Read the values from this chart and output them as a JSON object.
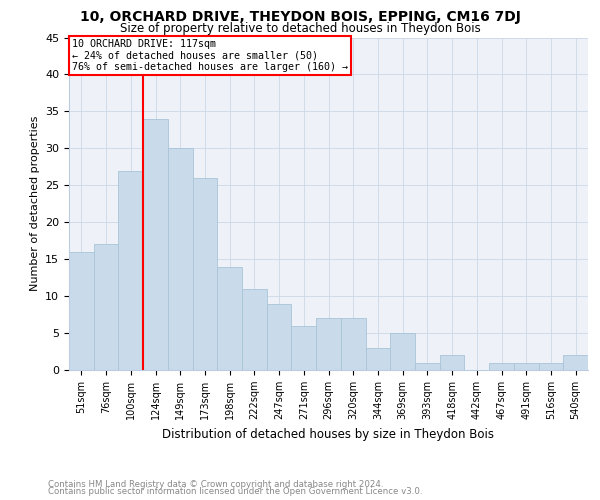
{
  "title1": "10, ORCHARD DRIVE, THEYDON BOIS, EPPING, CM16 7DJ",
  "title2": "Size of property relative to detached houses in Theydon Bois",
  "xlabel": "Distribution of detached houses by size in Theydon Bois",
  "ylabel": "Number of detached properties",
  "categories": [
    "51sqm",
    "76sqm",
    "100sqm",
    "124sqm",
    "149sqm",
    "173sqm",
    "198sqm",
    "222sqm",
    "247sqm",
    "271sqm",
    "296sqm",
    "320sqm",
    "344sqm",
    "369sqm",
    "393sqm",
    "418sqm",
    "442sqm",
    "467sqm",
    "491sqm",
    "516sqm",
    "540sqm"
  ],
  "values": [
    16,
    17,
    27,
    34,
    30,
    26,
    14,
    11,
    9,
    6,
    7,
    7,
    3,
    5,
    1,
    2,
    0,
    1,
    1,
    1,
    2
  ],
  "bar_color": "#c9daea",
  "bar_edge_color": "#a8c4d8",
  "vline_color": "red",
  "vline_x_index": 3,
  "annotation_title": "10 ORCHARD DRIVE: 117sqm",
  "annotation_line1": "← 24% of detached houses are smaller (50)",
  "annotation_line2": "76% of semi-detached houses are larger (160) →",
  "annotation_box_color": "white",
  "annotation_box_edge": "red",
  "ylim": [
    0,
    45
  ],
  "yticks": [
    0,
    5,
    10,
    15,
    20,
    25,
    30,
    35,
    40,
    45
  ],
  "grid_color": "#ccd8e8",
  "footer1": "Contains HM Land Registry data © Crown copyright and database right 2024.",
  "footer2": "Contains public sector information licensed under the Open Government Licence v3.0.",
  "bg_color": "#eef2f8",
  "fig_bg": "#ffffff"
}
